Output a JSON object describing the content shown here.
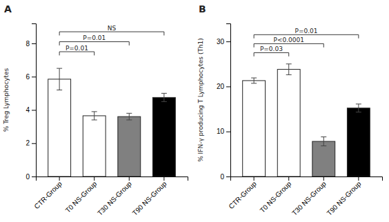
{
  "chart_data": [
    {
      "type": "bar",
      "title": "A",
      "categories": [
        "CTR-Group",
        "T0 NS-Group",
        "T30 NS-Group",
        "T90 NS-Group"
      ],
      "values": [
        5.85,
        3.65,
        3.6,
        4.75
      ],
      "errors": [
        0.65,
        0.25,
        0.2,
        0.25
      ],
      "colors": [
        "white",
        "white",
        "#808080",
        "black"
      ],
      "ylabel": "% Treg Lymphocytes",
      "ylim": [
        0,
        9.2
      ],
      "yticks": [
        0,
        2,
        4,
        6,
        8
      ],
      "annotations": [
        {
          "x1": "CTR-Group",
          "x2": "T0 NS-Group",
          "y": 7.5,
          "text": "P=0.01"
        },
        {
          "x1": "CTR-Group",
          "x2": "T30 NS-Group",
          "y": 8.1,
          "text": "P=0.01"
        },
        {
          "x1": "CTR-Group",
          "x2": "T90 NS-Group",
          "y": 8.7,
          "text": "NS"
        }
      ]
    },
    {
      "type": "bar",
      "title": "B",
      "categories": [
        "CTR-Group",
        "T0 NS-Group",
        "T30 NS-Group",
        "T90 NS-Group"
      ],
      "values": [
        21.3,
        23.8,
        7.8,
        15.2
      ],
      "errors": [
        0.6,
        1.2,
        1.0,
        0.9
      ],
      "colors": [
        "white",
        "white",
        "#808080",
        "black"
      ],
      "ylabel": "% IFN-γ producing T Lymphocytes (Th1)",
      "ylim": [
        0,
        34
      ],
      "yticks": [
        0,
        10,
        20,
        30
      ],
      "annotations": [
        {
          "x1": "CTR-Group",
          "x2": "T0 NS-Group",
          "y": 27.5,
          "text": "P=0.03"
        },
        {
          "x1": "CTR-Group",
          "x2": "T30 NS-Group",
          "y": 29.5,
          "text": "P<0.0001"
        },
        {
          "x1": "CTR-Group",
          "x2": "T90 NS-Group",
          "y": 31.5,
          "text": "P=0.01"
        }
      ]
    }
  ]
}
